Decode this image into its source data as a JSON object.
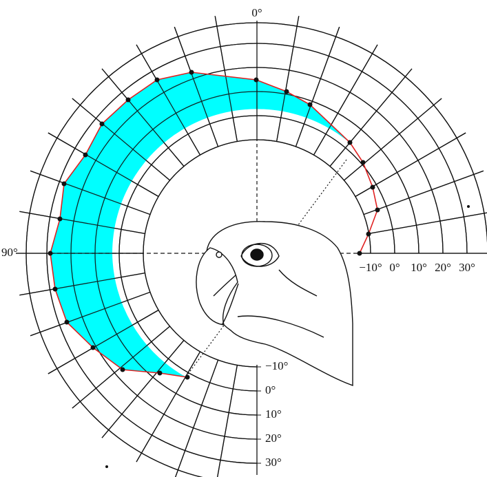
{
  "labels": {
    "top": "0°",
    "left": "90°",
    "right_scale": [
      "−10°",
      "0°",
      "10°",
      "20°",
      "30°"
    ],
    "bottom_scale": [
      "−10°",
      "0°",
      "10°",
      "20°",
      "30°"
    ]
  }
}
